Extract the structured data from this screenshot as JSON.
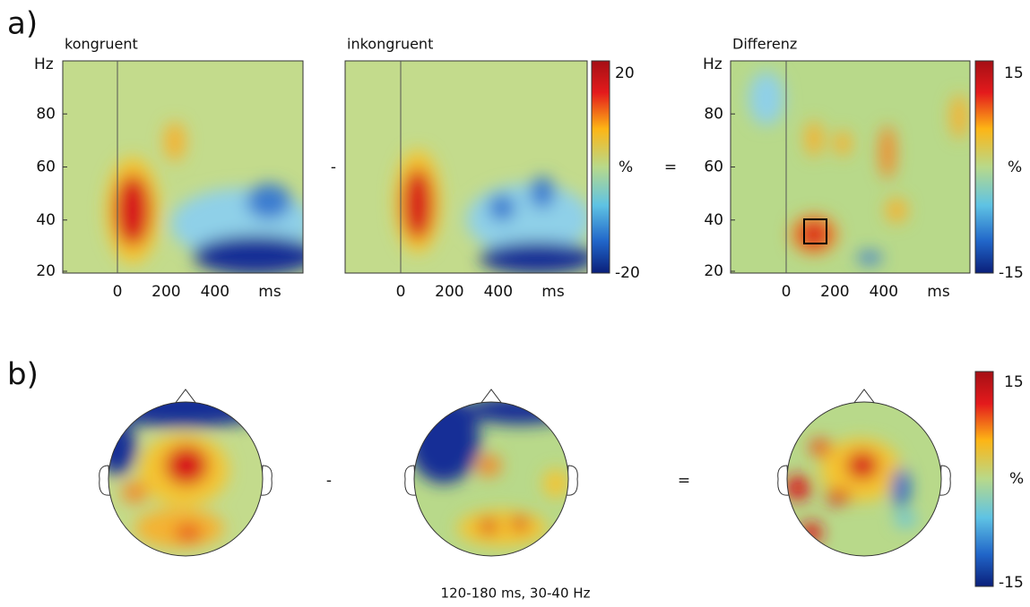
{
  "panel_a": {
    "label": "a)",
    "plots": [
      {
        "title": "kongruent",
        "y_unit": "Hz",
        "yticks": [
          80,
          60,
          40,
          20
        ],
        "xticks": [
          0,
          200,
          400
        ],
        "x_unit": "ms"
      },
      {
        "title": "inkongruent",
        "xticks": [
          0,
          200,
          400
        ],
        "x_unit": "ms"
      },
      {
        "title": "Differenz",
        "y_unit": "Hz",
        "yticks": [
          80,
          60,
          40,
          20
        ],
        "xticks": [
          0,
          200,
          400
        ],
        "x_unit": "ms"
      }
    ],
    "operators": [
      "-",
      "="
    ],
    "colorbars": [
      {
        "max": 20,
        "unit": "%",
        "min": -20
      },
      {
        "max": 15,
        "unit": "%",
        "min": -15
      }
    ]
  },
  "panel_b": {
    "label": "b)",
    "operators": [
      "-",
      "="
    ],
    "colorbar": {
      "max": 15,
      "unit": "%",
      "min": -15
    },
    "caption": "120-180 ms, 30-40 Hz"
  }
}
